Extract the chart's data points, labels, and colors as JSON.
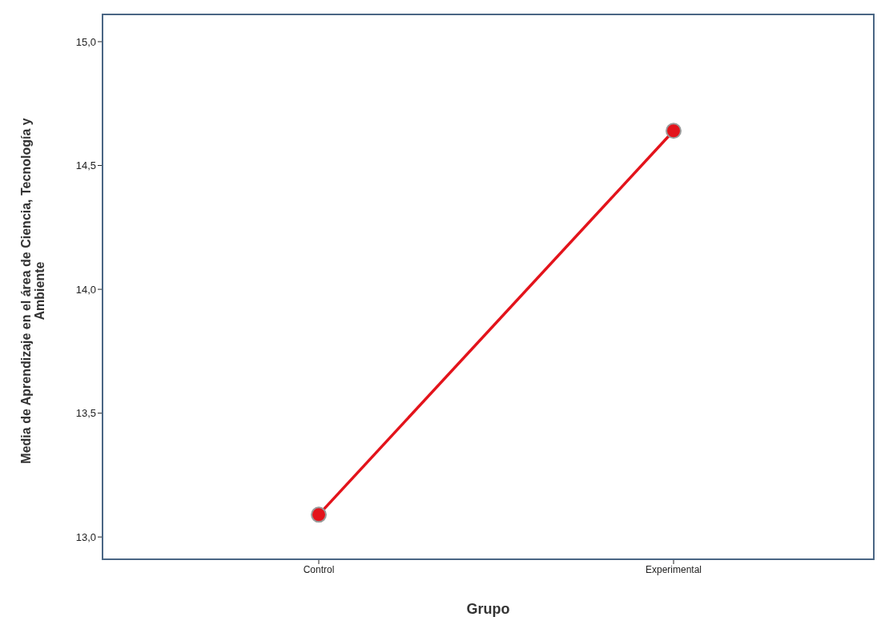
{
  "chart_data": {
    "type": "line",
    "xlabel": "Grupo",
    "ylabel": "Media de Aprendizaje en el área de Ciencia, Tecnología y Ambiente",
    "categories": [
      "Control",
      "Experimental"
    ],
    "series": [
      {
        "color": "#e3131b",
        "values": [
          13.09,
          14.64
        ]
      }
    ],
    "ylim": [
      12.91,
      15.11
    ],
    "yticks": [
      {
        "value": 13,
        "label": "13,0"
      },
      {
        "value": 13.5,
        "label": "13,5"
      },
      {
        "value": 14,
        "label": "14,0"
      },
      {
        "value": 14.5,
        "label": "14,5"
      },
      {
        "value": 15,
        "label": "15,0"
      }
    ],
    "marker": "circle",
    "line_style": "solid",
    "grid": false,
    "legend": false
  }
}
